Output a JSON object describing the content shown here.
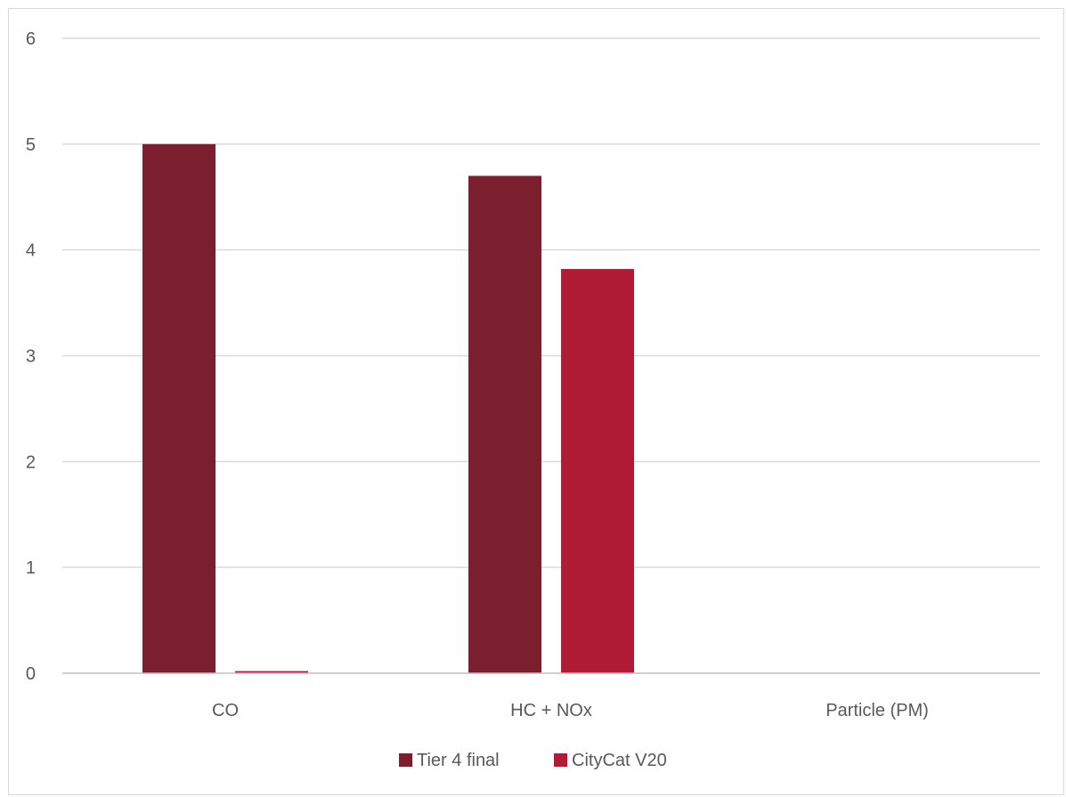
{
  "chart_data": {
    "type": "bar",
    "categories": [
      "CO",
      "HC + NOx",
      "Particle (PM)"
    ],
    "series": [
      {
        "name": "Tier 4 final",
        "color": "#7b1f2e",
        "values": [
          5.0,
          4.7,
          0.0
        ]
      },
      {
        "name": "CityCat V20",
        "color": "#b01c35",
        "values": [
          0.02,
          3.82,
          0.0
        ]
      }
    ],
    "y_ticks": [
      "0",
      "1",
      "2",
      "3",
      "4",
      "5",
      "6"
    ],
    "ylim": [
      0,
      6
    ],
    "grid": true,
    "legend_position": "bottom-center",
    "colors": {
      "grid": "#d9d9d9",
      "axis": "#bfbfbf",
      "text": "#595959"
    }
  }
}
